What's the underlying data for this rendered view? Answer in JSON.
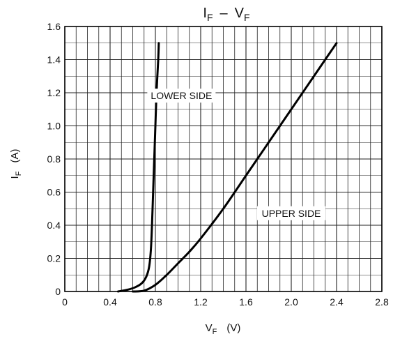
{
  "chart_data": {
    "type": "line",
    "title_main": "I",
    "title_sub1": "F",
    "title_dash": "–",
    "title_main2": "V",
    "title_sub2": "F",
    "xlabel_main": "V",
    "xlabel_sub": "F",
    "xlabel_unit": "(V)",
    "ylabel_main": "I",
    "ylabel_sub": "F",
    "ylabel_unit": "(A)",
    "xlim": [
      0,
      2.8
    ],
    "ylim": [
      0,
      1.6
    ],
    "x_ticks": [
      "0",
      "0.4",
      "0.8",
      "1.2",
      "1.6",
      "2.0",
      "2.4",
      "2.8"
    ],
    "y_ticks": [
      "0",
      "0.2",
      "0.4",
      "0.6",
      "0.8",
      "1.0",
      "1.2",
      "1.4",
      "1.6"
    ],
    "x_tick_values": [
      0,
      0.4,
      0.8,
      1.2,
      1.6,
      2.0,
      2.4,
      2.8
    ],
    "y_tick_values": [
      0,
      0.2,
      0.4,
      0.6,
      0.8,
      1.0,
      1.2,
      1.4,
      1.6
    ],
    "grid": true,
    "grid_minor_x": 0.1,
    "grid_minor_y": 0.1,
    "series": [
      {
        "name": "LOWER SIDE",
        "color": "#000000",
        "points": [
          [
            0.47,
            0.0
          ],
          [
            0.55,
            0.01
          ],
          [
            0.62,
            0.025
          ],
          [
            0.68,
            0.05
          ],
          [
            0.72,
            0.09
          ],
          [
            0.745,
            0.15
          ],
          [
            0.76,
            0.25
          ],
          [
            0.77,
            0.4
          ],
          [
            0.78,
            0.6
          ],
          [
            0.79,
            0.8
          ],
          [
            0.8,
            1.0
          ],
          [
            0.81,
            1.2
          ],
          [
            0.825,
            1.4
          ],
          [
            0.83,
            1.5
          ]
        ]
      },
      {
        "name": "UPPER SIDE",
        "color": "#000000",
        "points": [
          [
            0.6,
            0.0
          ],
          [
            0.7,
            0.005
          ],
          [
            0.8,
            0.04
          ],
          [
            0.9,
            0.1
          ],
          [
            1.0,
            0.17
          ],
          [
            1.1,
            0.24
          ],
          [
            1.2,
            0.32
          ],
          [
            1.4,
            0.5
          ],
          [
            1.6,
            0.7
          ],
          [
            1.8,
            0.9
          ],
          [
            2.0,
            1.1
          ],
          [
            2.2,
            1.3
          ],
          [
            2.4,
            1.5
          ]
        ]
      }
    ],
    "annotations": [
      {
        "text": "LOWER SIDE",
        "x": 1.03,
        "y": 1.17
      },
      {
        "text": "UPPER SIDE",
        "x": 2.0,
        "y": 0.46
      }
    ]
  }
}
